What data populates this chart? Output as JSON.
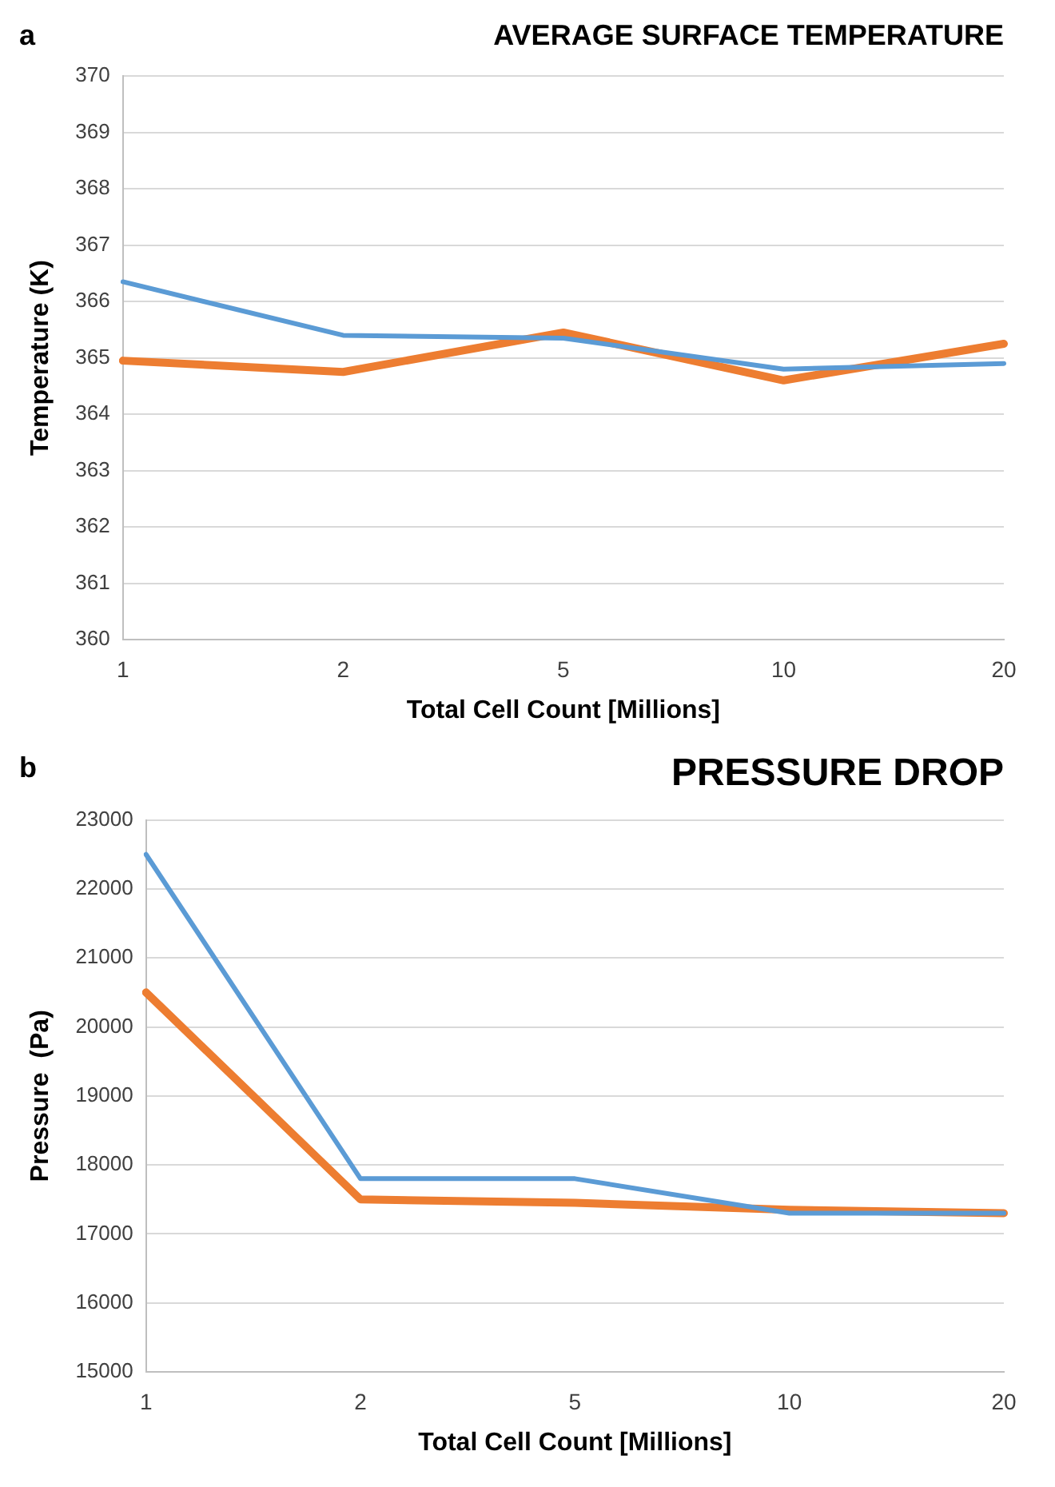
{
  "chart_data": [
    {
      "type": "line",
      "title": "AVERAGE SURFACE TEMPERATURE",
      "annotations": [
        "a"
      ],
      "xlabel": "Total Cell Count [Millions]",
      "ylabel": "Temperature (K)",
      "categories": [
        "1",
        "2",
        "5",
        "10",
        "20"
      ],
      "series": [
        {
          "color": "#5b9bd5",
          "values": [
            366.35,
            365.4,
            365.35,
            364.8,
            364.9
          ]
        },
        {
          "color": "#ed7d31",
          "values": [
            364.95,
            364.75,
            365.45,
            364.6,
            365.25
          ]
        }
      ],
      "ylim": [
        360,
        370
      ],
      "yticks": [
        360,
        361,
        362,
        363,
        364,
        365,
        366,
        367,
        368,
        369,
        370
      ],
      "grid": "y",
      "marker": "none",
      "line_style": "solid"
    },
    {
      "type": "line",
      "title": "PRESSURE DROP",
      "annotations": [
        "b"
      ],
      "xlabel": "Total Cell Count [Millions]",
      "ylabel": "Pressure  (Pa)",
      "categories": [
        "1",
        "2",
        "5",
        "10",
        "20"
      ],
      "series": [
        {
          "color": "#5b9bd5",
          "values": [
            22500,
            17800,
            17800,
            17300,
            17300
          ]
        },
        {
          "color": "#ed7d31",
          "values": [
            20500,
            17500,
            17450,
            17350,
            17300
          ]
        }
      ],
      "ylim": [
        15000,
        23000
      ],
      "yticks": [
        15000,
        16000,
        17000,
        18000,
        19000,
        20000,
        21000,
        22000,
        23000
      ],
      "grid": "y",
      "marker": "none",
      "line_style": "solid"
    }
  ]
}
